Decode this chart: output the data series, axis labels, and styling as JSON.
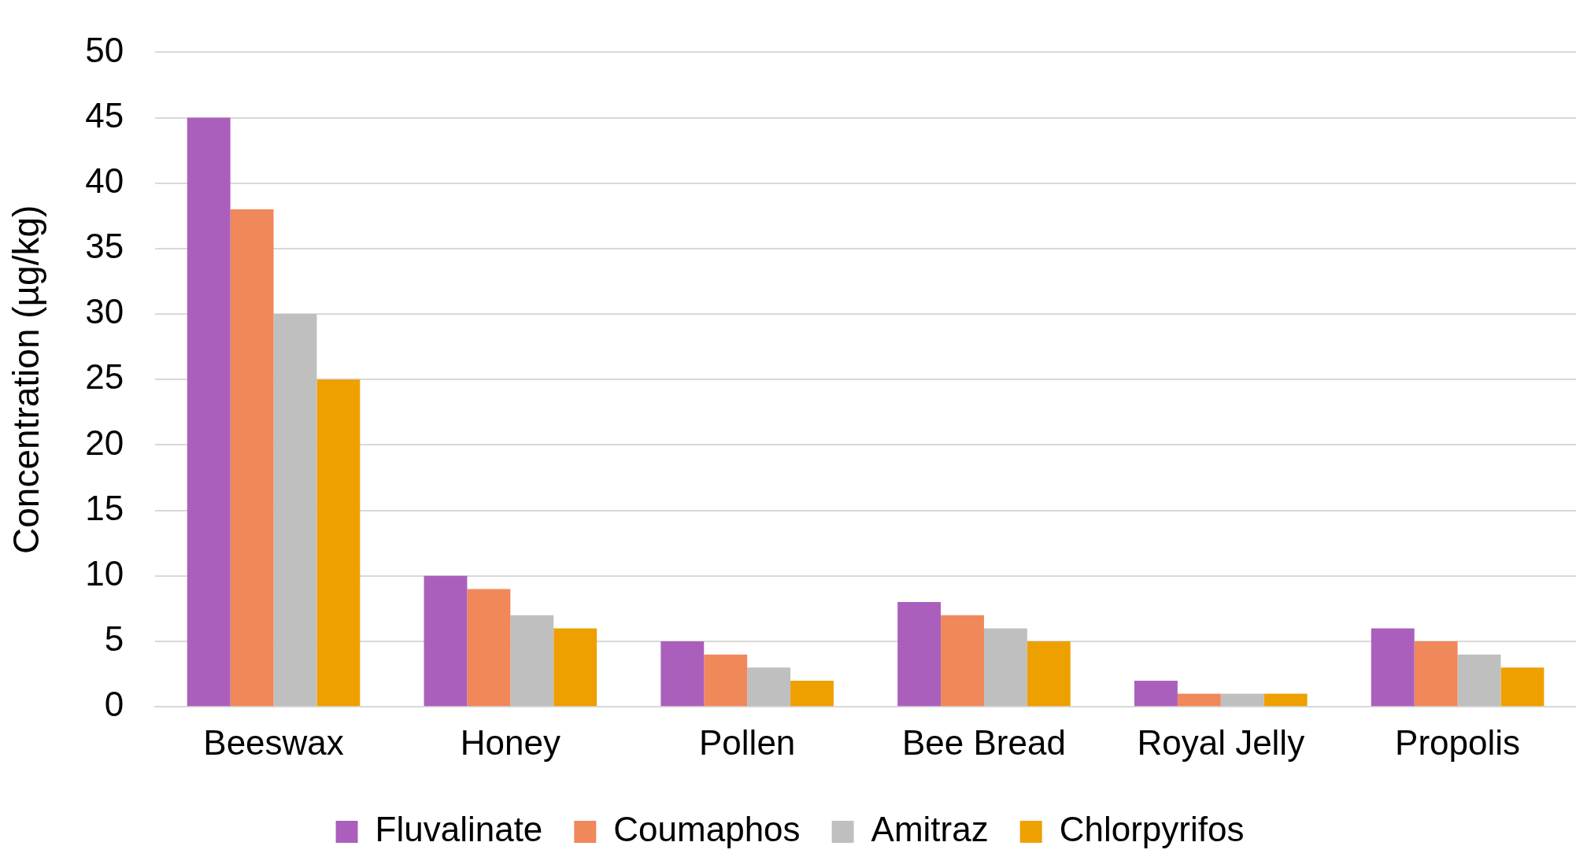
{
  "chart_data": {
    "type": "bar",
    "ylabel": "Concentration (µg/kg)",
    "categories": [
      "Beeswax",
      "Honey",
      "Pollen",
      "Bee Bread",
      "Royal Jelly",
      "Propolis"
    ],
    "series": [
      {
        "name": "Fluvalinate",
        "color": "#ab5fbd",
        "values": [
          45,
          10,
          5,
          8,
          2,
          6
        ]
      },
      {
        "name": "Coumaphos",
        "color": "#f0885a",
        "values": [
          38,
          9,
          4,
          7,
          1,
          5
        ]
      },
      {
        "name": "Amitraz",
        "color": "#bfbfbf",
        "values": [
          30,
          7,
          3,
          6,
          1,
          4
        ]
      },
      {
        "name": "Chlorpyrifos",
        "color": "#eea000",
        "values": [
          25,
          6,
          2,
          5,
          1,
          3
        ]
      }
    ],
    "ylim": [
      0,
      50
    ],
    "yticks": [
      0,
      5,
      10,
      15,
      20,
      25,
      30,
      35,
      40,
      45,
      50
    ],
    "grid": "y",
    "legend": "bottom"
  }
}
